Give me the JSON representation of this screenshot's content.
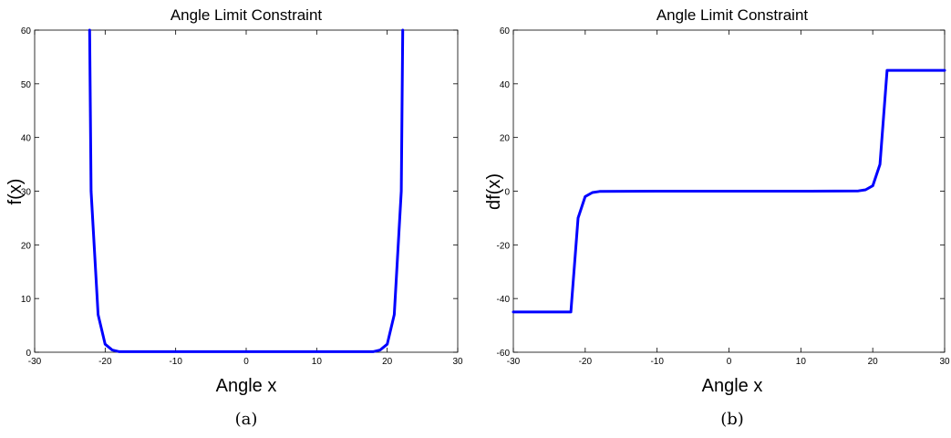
{
  "chart_data": [
    {
      "type": "line",
      "title": "Angle Limit Constraint",
      "xlabel": "Angle x",
      "ylabel": "f(x)",
      "caption": "(a)",
      "xlim": [
        -30,
        30
      ],
      "ylim": [
        0,
        60
      ],
      "xticks": [
        -30,
        -20,
        -10,
        0,
        10,
        20,
        30
      ],
      "yticks": [
        0,
        10,
        20,
        30,
        40,
        50,
        60
      ],
      "grid": false,
      "color": "#0000ff",
      "series": [
        {
          "x": [
            -22.2,
            -22.0,
            -21.0,
            -20.0,
            -19.0,
            -18.0,
            -10.0,
            0.0,
            10.0,
            18.0,
            19.0,
            20.0,
            21.0,
            22.0,
            22.2
          ],
          "y": [
            60,
            30,
            7,
            1.5,
            0.4,
            0.1,
            0.1,
            0.1,
            0.1,
            0.1,
            0.4,
            1.5,
            7,
            30,
            60
          ]
        }
      ]
    },
    {
      "type": "line",
      "title": "Angle Limit Constraint",
      "xlabel": "Angle x",
      "ylabel": "df(x)",
      "caption": "(b)",
      "xlim": [
        -30,
        30
      ],
      "ylim": [
        -60,
        60
      ],
      "xticks": [
        -30,
        -20,
        -10,
        0,
        10,
        20,
        30
      ],
      "yticks": [
        -60,
        -40,
        -20,
        0,
        20,
        40,
        60
      ],
      "grid": false,
      "color": "#0000ff",
      "series": [
        {
          "x": [
            -30,
            -22,
            -21,
            -20,
            -19,
            -18,
            -10,
            0,
            10,
            18,
            19,
            20,
            21,
            22,
            30
          ],
          "y": [
            -45,
            -45,
            -10,
            -2,
            -0.5,
            -0.1,
            0,
            0,
            0,
            0.1,
            0.5,
            2,
            10,
            45,
            45
          ]
        }
      ]
    }
  ]
}
